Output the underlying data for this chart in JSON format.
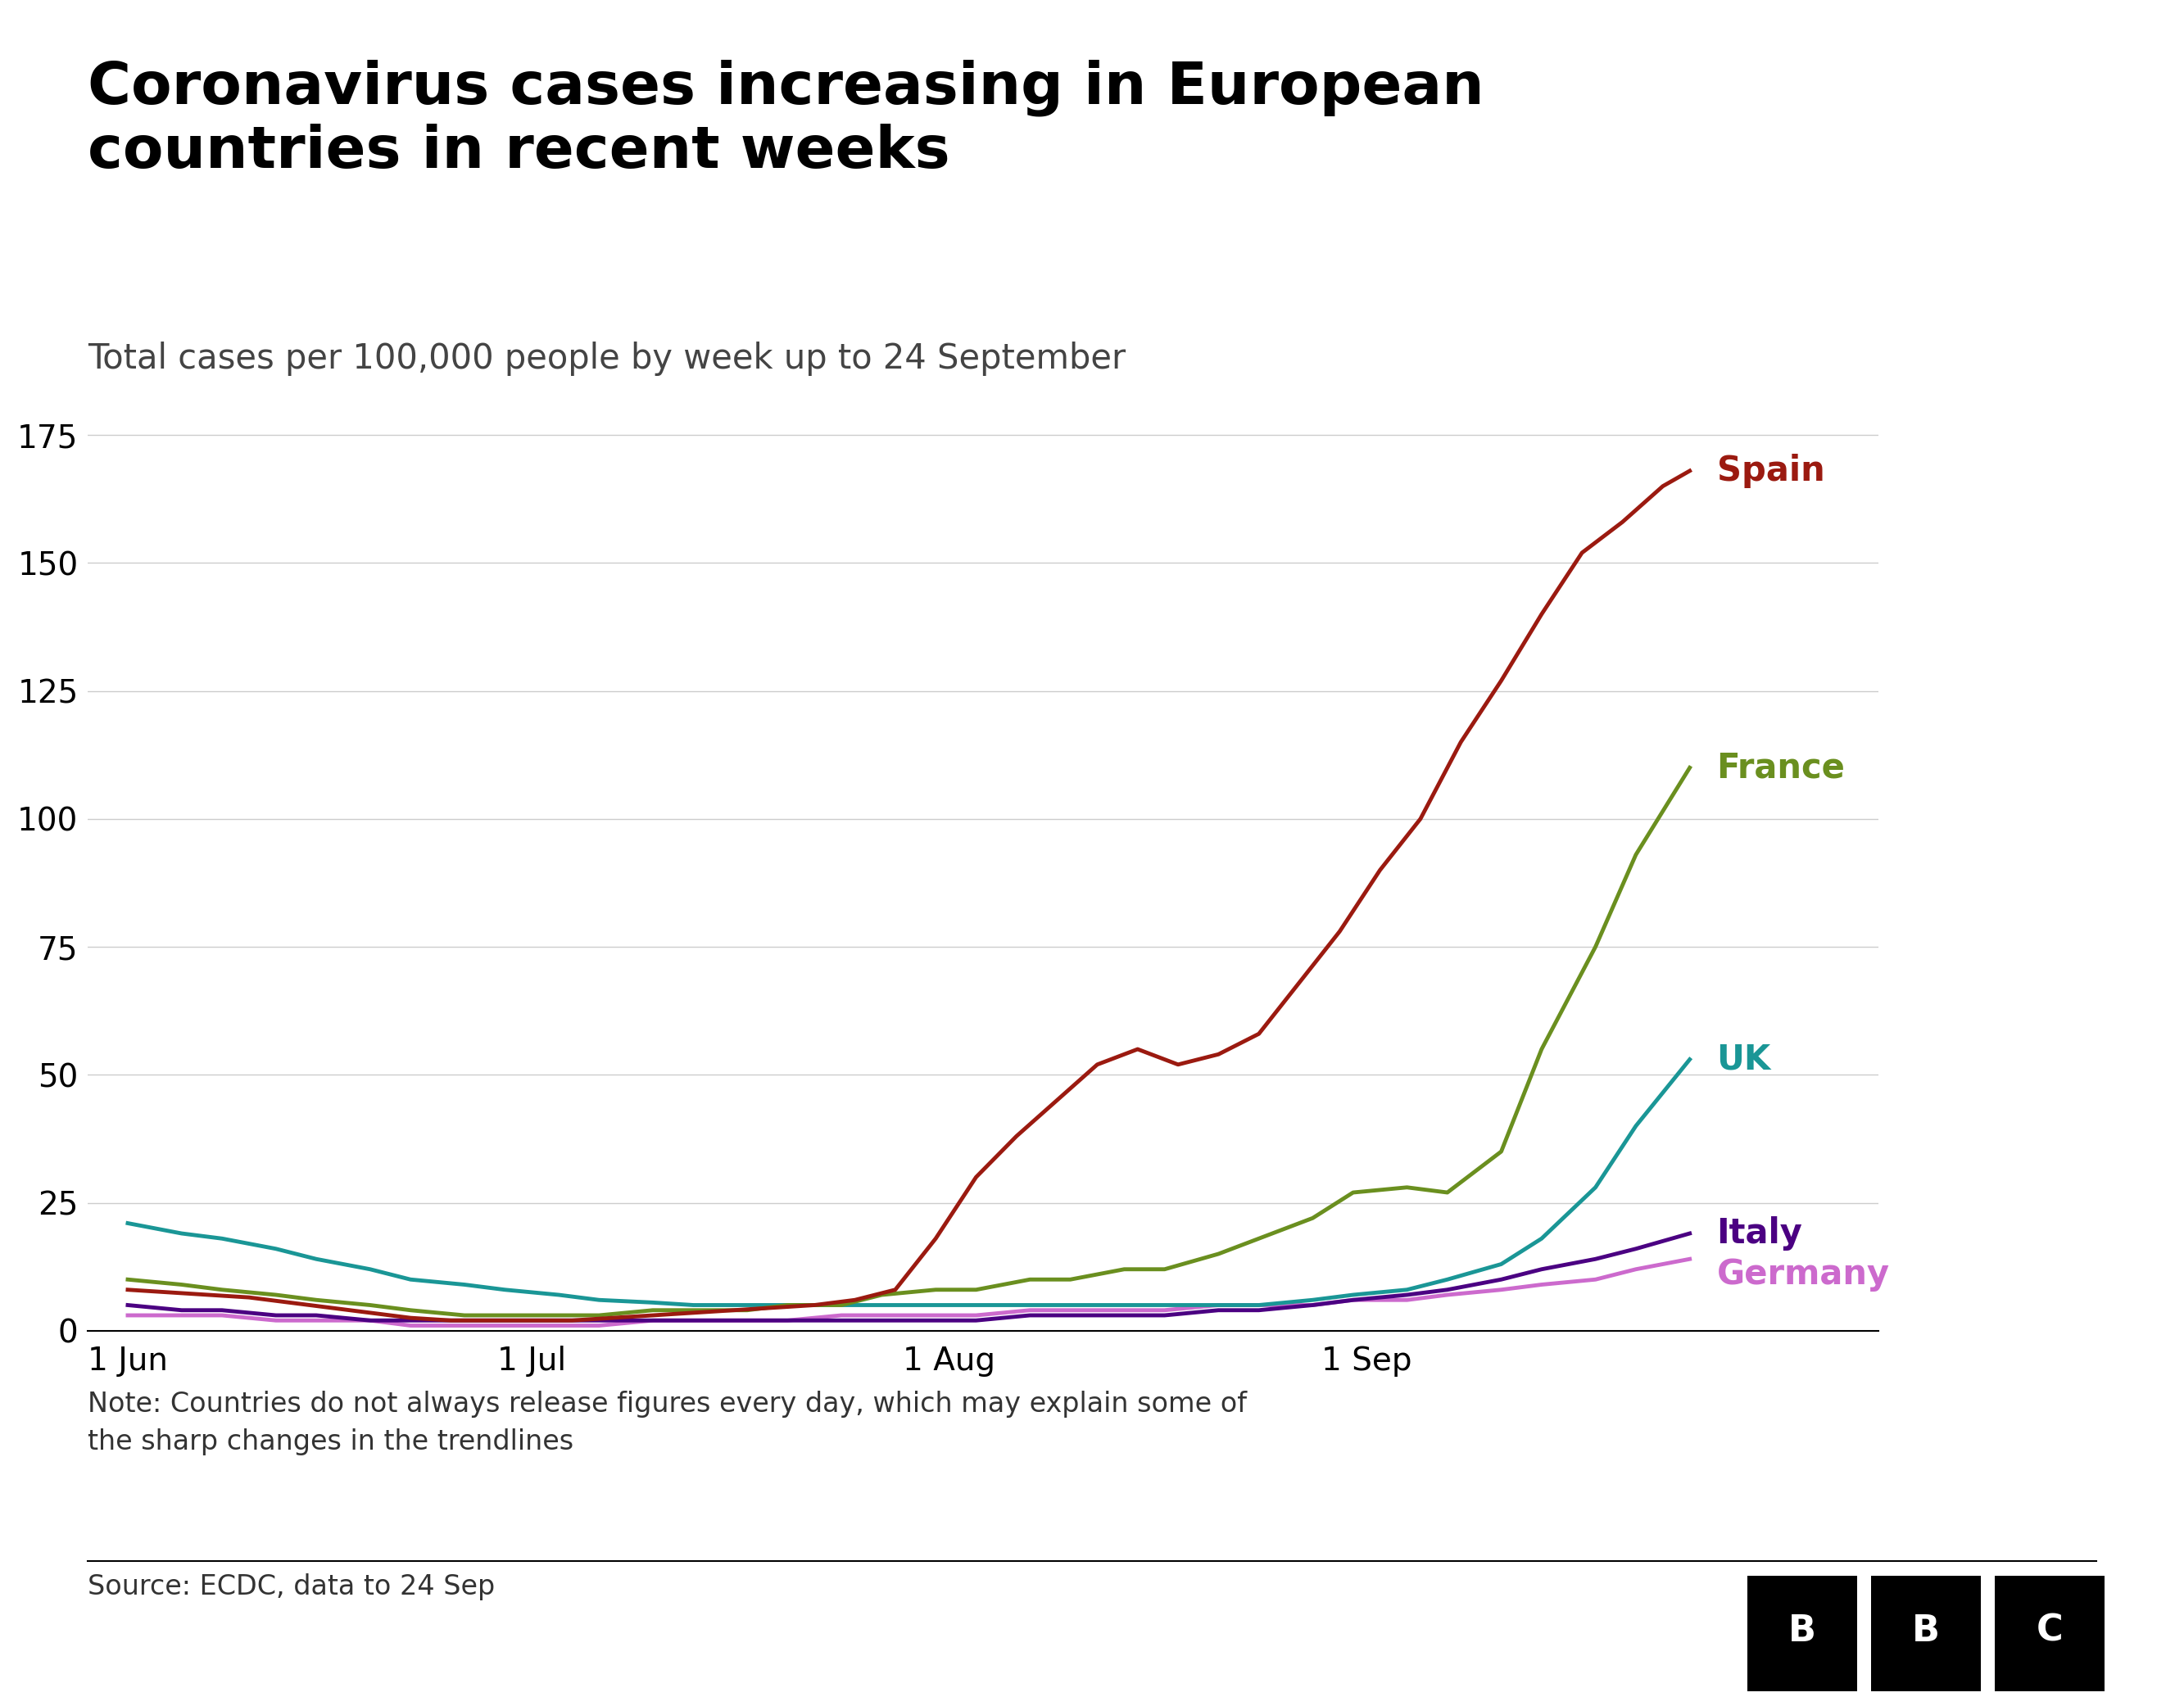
{
  "title_line1": "Coronavirus cases increasing in European",
  "title_line2": "countries in recent weeks",
  "subtitle": "Total cases per 100,000 people by week up to 24 September",
  "note": "Note: Countries do not always release figures every day, which may explain some of\nthe sharp changes in the trendlines",
  "source": "Source: ECDC, data to 24 Sep",
  "ylim": [
    0,
    185
  ],
  "yticks": [
    0,
    25,
    50,
    75,
    100,
    125,
    150,
    175
  ],
  "background_color": "#ffffff",
  "title_color": "#000000",
  "spain_color": "#9b1a10",
  "france_color": "#6a8f1f",
  "uk_color": "#1a9696",
  "italy_color": "#4b0082",
  "germany_color": "#cc6acd",
  "xtick_labels": [
    "1 Jun",
    "1 Jul",
    "1 Aug",
    "1 Sep"
  ],
  "xtick_positions": [
    0,
    30,
    61,
    92
  ],
  "title_fontsize": 52,
  "subtitle_fontsize": 30,
  "label_fontsize": 30,
  "tick_fontsize": 28,
  "note_fontsize": 24,
  "source_fontsize": 24,
  "linewidth": 3.5,
  "spain_x": [
    0,
    3,
    6,
    9,
    12,
    15,
    18,
    21,
    24,
    27,
    30,
    33,
    36,
    39,
    42,
    45,
    48,
    51,
    54,
    57,
    60,
    63,
    66,
    69,
    72,
    75,
    78,
    81,
    84,
    87,
    90,
    93,
    96,
    99,
    102,
    105,
    108,
    111,
    114,
    116
  ],
  "spain_y": [
    8,
    7.5,
    7,
    6.5,
    5.5,
    4.5,
    3.5,
    2.5,
    2,
    2,
    2,
    2,
    2.5,
    3,
    3.5,
    4,
    4.5,
    5,
    6,
    8,
    18,
    30,
    38,
    45,
    52,
    55,
    52,
    54,
    58,
    68,
    78,
    90,
    100,
    115,
    127,
    140,
    152,
    158,
    165,
    168
  ],
  "france_x": [
    0,
    4,
    7,
    11,
    14,
    18,
    21,
    25,
    28,
    32,
    35,
    39,
    42,
    46,
    49,
    53,
    56,
    60,
    63,
    67,
    70,
    74,
    77,
    81,
    84,
    88,
    91,
    95,
    98,
    102,
    105,
    109,
    112,
    116
  ],
  "france_y": [
    10,
    9,
    8,
    7,
    6,
    5,
    4,
    3,
    3,
    3,
    3,
    4,
    4,
    4,
    5,
    5,
    7,
    8,
    8,
    10,
    10,
    12,
    12,
    15,
    18,
    22,
    27,
    28,
    27,
    35,
    55,
    75,
    93,
    110
  ],
  "uk_x": [
    0,
    4,
    7,
    11,
    14,
    18,
    21,
    25,
    28,
    32,
    35,
    39,
    42,
    46,
    49,
    53,
    56,
    60,
    63,
    67,
    70,
    74,
    77,
    81,
    84,
    88,
    91,
    95,
    98,
    102,
    105,
    109,
    112,
    116
  ],
  "uk_y": [
    21,
    19,
    18,
    16,
    14,
    12,
    10,
    9,
    8,
    7,
    6,
    5.5,
    5,
    5,
    5,
    5,
    5,
    5,
    5,
    5,
    5,
    5,
    5,
    5,
    5,
    6,
    7,
    8,
    10,
    13,
    18,
    28,
    40,
    53
  ],
  "italy_x": [
    0,
    4,
    7,
    11,
    14,
    18,
    21,
    25,
    28,
    32,
    35,
    39,
    42,
    46,
    49,
    53,
    56,
    60,
    63,
    67,
    70,
    74,
    77,
    81,
    84,
    88,
    91,
    95,
    98,
    102,
    105,
    109,
    112,
    116
  ],
  "italy_y": [
    5,
    4,
    4,
    3,
    3,
    2,
    2,
    2,
    2,
    2,
    2,
    2,
    2,
    2,
    2,
    2,
    2,
    2,
    2,
    3,
    3,
    3,
    3,
    4,
    4,
    5,
    6,
    7,
    8,
    10,
    12,
    14,
    16,
    19
  ],
  "germany_x": [
    0,
    4,
    7,
    11,
    14,
    18,
    21,
    25,
    28,
    32,
    35,
    39,
    42,
    46,
    49,
    53,
    56,
    60,
    63,
    67,
    70,
    74,
    77,
    81,
    84,
    88,
    91,
    95,
    98,
    102,
    105,
    109,
    112,
    116
  ],
  "germany_y": [
    3,
    3,
    3,
    2,
    2,
    2,
    1,
    1,
    1,
    1,
    1,
    2,
    2,
    2,
    2,
    3,
    3,
    3,
    3,
    4,
    4,
    4,
    4,
    5,
    5,
    5,
    6,
    6,
    7,
    8,
    9,
    10,
    12,
    14
  ]
}
